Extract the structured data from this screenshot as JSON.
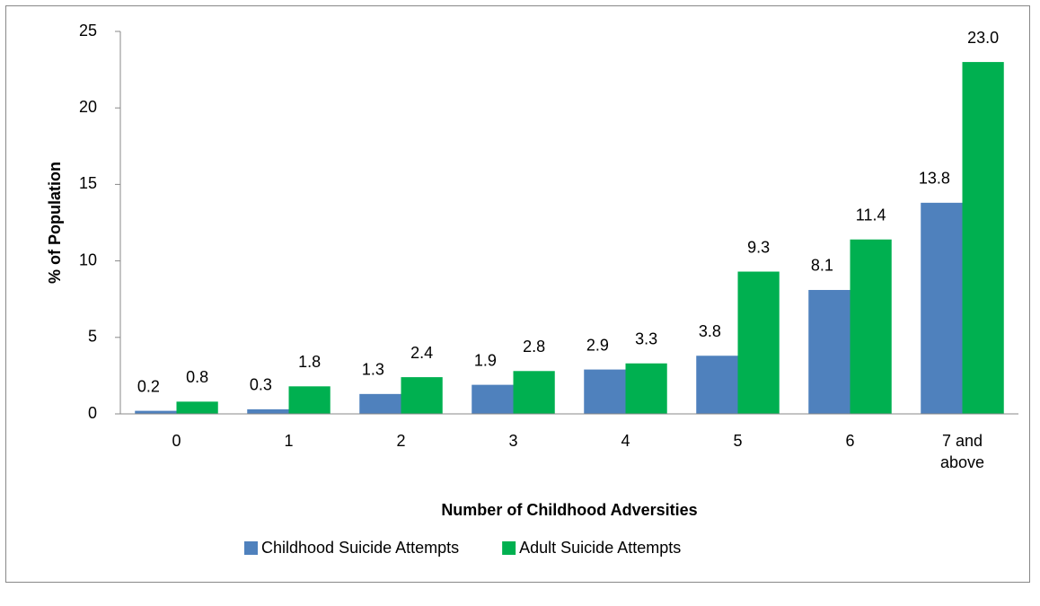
{
  "chart_data": {
    "type": "bar",
    "x_label": "Number of Childhood Adversities",
    "y_label": "% of Population",
    "categories": [
      "0",
      "1",
      "2",
      "3",
      "4",
      "5",
      "6",
      "7 and above"
    ],
    "series": [
      {
        "name": "Childhood Suicide Attempts",
        "color": "#4f81bd",
        "values": [
          0.2,
          0.3,
          1.3,
          1.9,
          2.9,
          3.8,
          8.1,
          13.8
        ],
        "value_labels": [
          "0.2",
          "0.3",
          "1.3",
          "1.9",
          "2.9",
          "3.8",
          "8.1",
          "13.8"
        ]
      },
      {
        "name": "Adult Suicide Attempts",
        "color": "#00b050",
        "values": [
          0.8,
          1.8,
          2.4,
          2.8,
          3.3,
          9.3,
          11.4,
          23.0
        ],
        "value_labels": [
          "0.8",
          "1.8",
          "2.4",
          "2.8",
          "3.3",
          "9.3",
          "11.4",
          "23.0"
        ]
      }
    ],
    "ylim": [
      0,
      25
    ],
    "yticks": [
      0,
      5,
      10,
      15,
      20,
      25
    ],
    "grid": false,
    "legend": "bottom"
  }
}
